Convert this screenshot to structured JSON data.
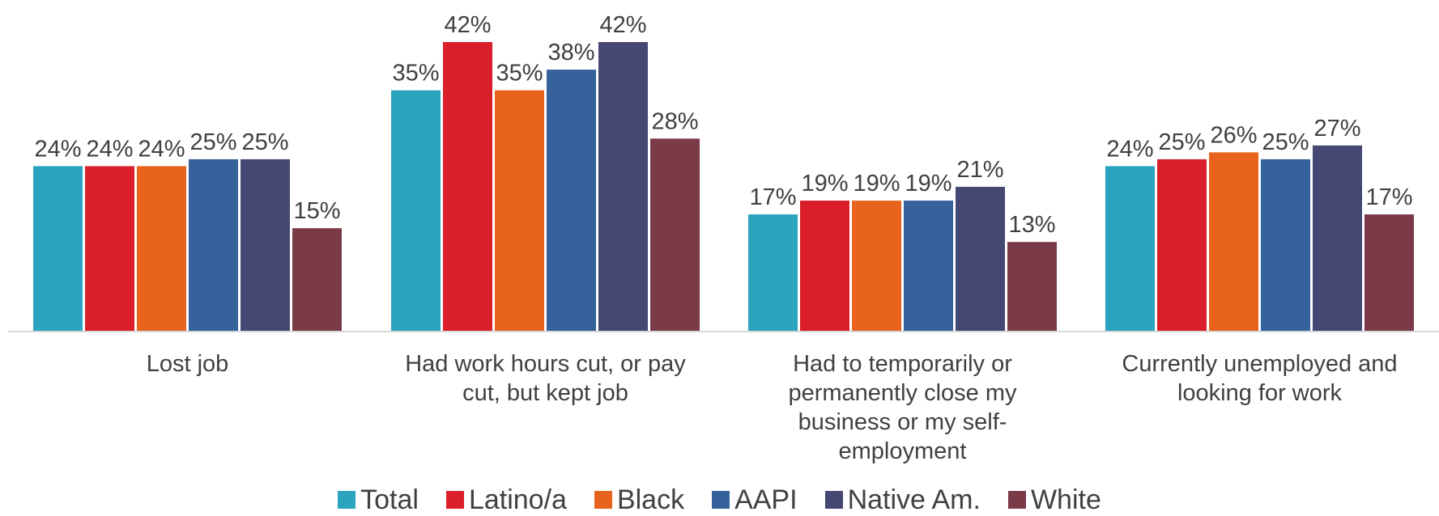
{
  "chart_data": {
    "type": "bar",
    "categories": [
      [
        "Lost job"
      ],
      [
        "Had work hours cut, or pay",
        "cut, but kept job"
      ],
      [
        "Had to temporarily or",
        "permanently close my",
        "business or my self-",
        "employment"
      ],
      [
        "Currently unemployed and",
        "looking for work"
      ]
    ],
    "series": [
      {
        "name": "Total",
        "color": "#2CA3BF",
        "values": [
          24,
          35,
          17,
          24
        ],
        "labels": [
          "24%",
          "35%",
          "17%",
          "24%"
        ]
      },
      {
        "name": "Latino/a",
        "color": "#DA1F2A",
        "values": [
          24,
          42,
          19,
          25
        ],
        "labels": [
          "24%",
          "42%",
          "19%",
          "25%"
        ]
      },
      {
        "name": "Black",
        "color": "#E8641E",
        "values": [
          24,
          35,
          19,
          26
        ],
        "labels": [
          "24%",
          "35%",
          "19%",
          "26%"
        ]
      },
      {
        "name": "AAPI",
        "color": "#35629A",
        "values": [
          25,
          38,
          19,
          25
        ],
        "labels": [
          "25%",
          "38%",
          "19%",
          "25%"
        ]
      },
      {
        "name": "Native Am.",
        "color": "#444872",
        "values": [
          25,
          42,
          21,
          27
        ],
        "labels": [
          "25%",
          "42%",
          "21%",
          "27%"
        ]
      },
      {
        "name": "White",
        "color": "#7B3A48",
        "values": [
          15,
          28,
          13,
          17
        ],
        "labels": [
          "15%",
          "28%",
          "13%",
          "17%"
        ]
      }
    ],
    "ylim": [
      0,
      42
    ],
    "grid": false,
    "legend_position": "bottom"
  }
}
